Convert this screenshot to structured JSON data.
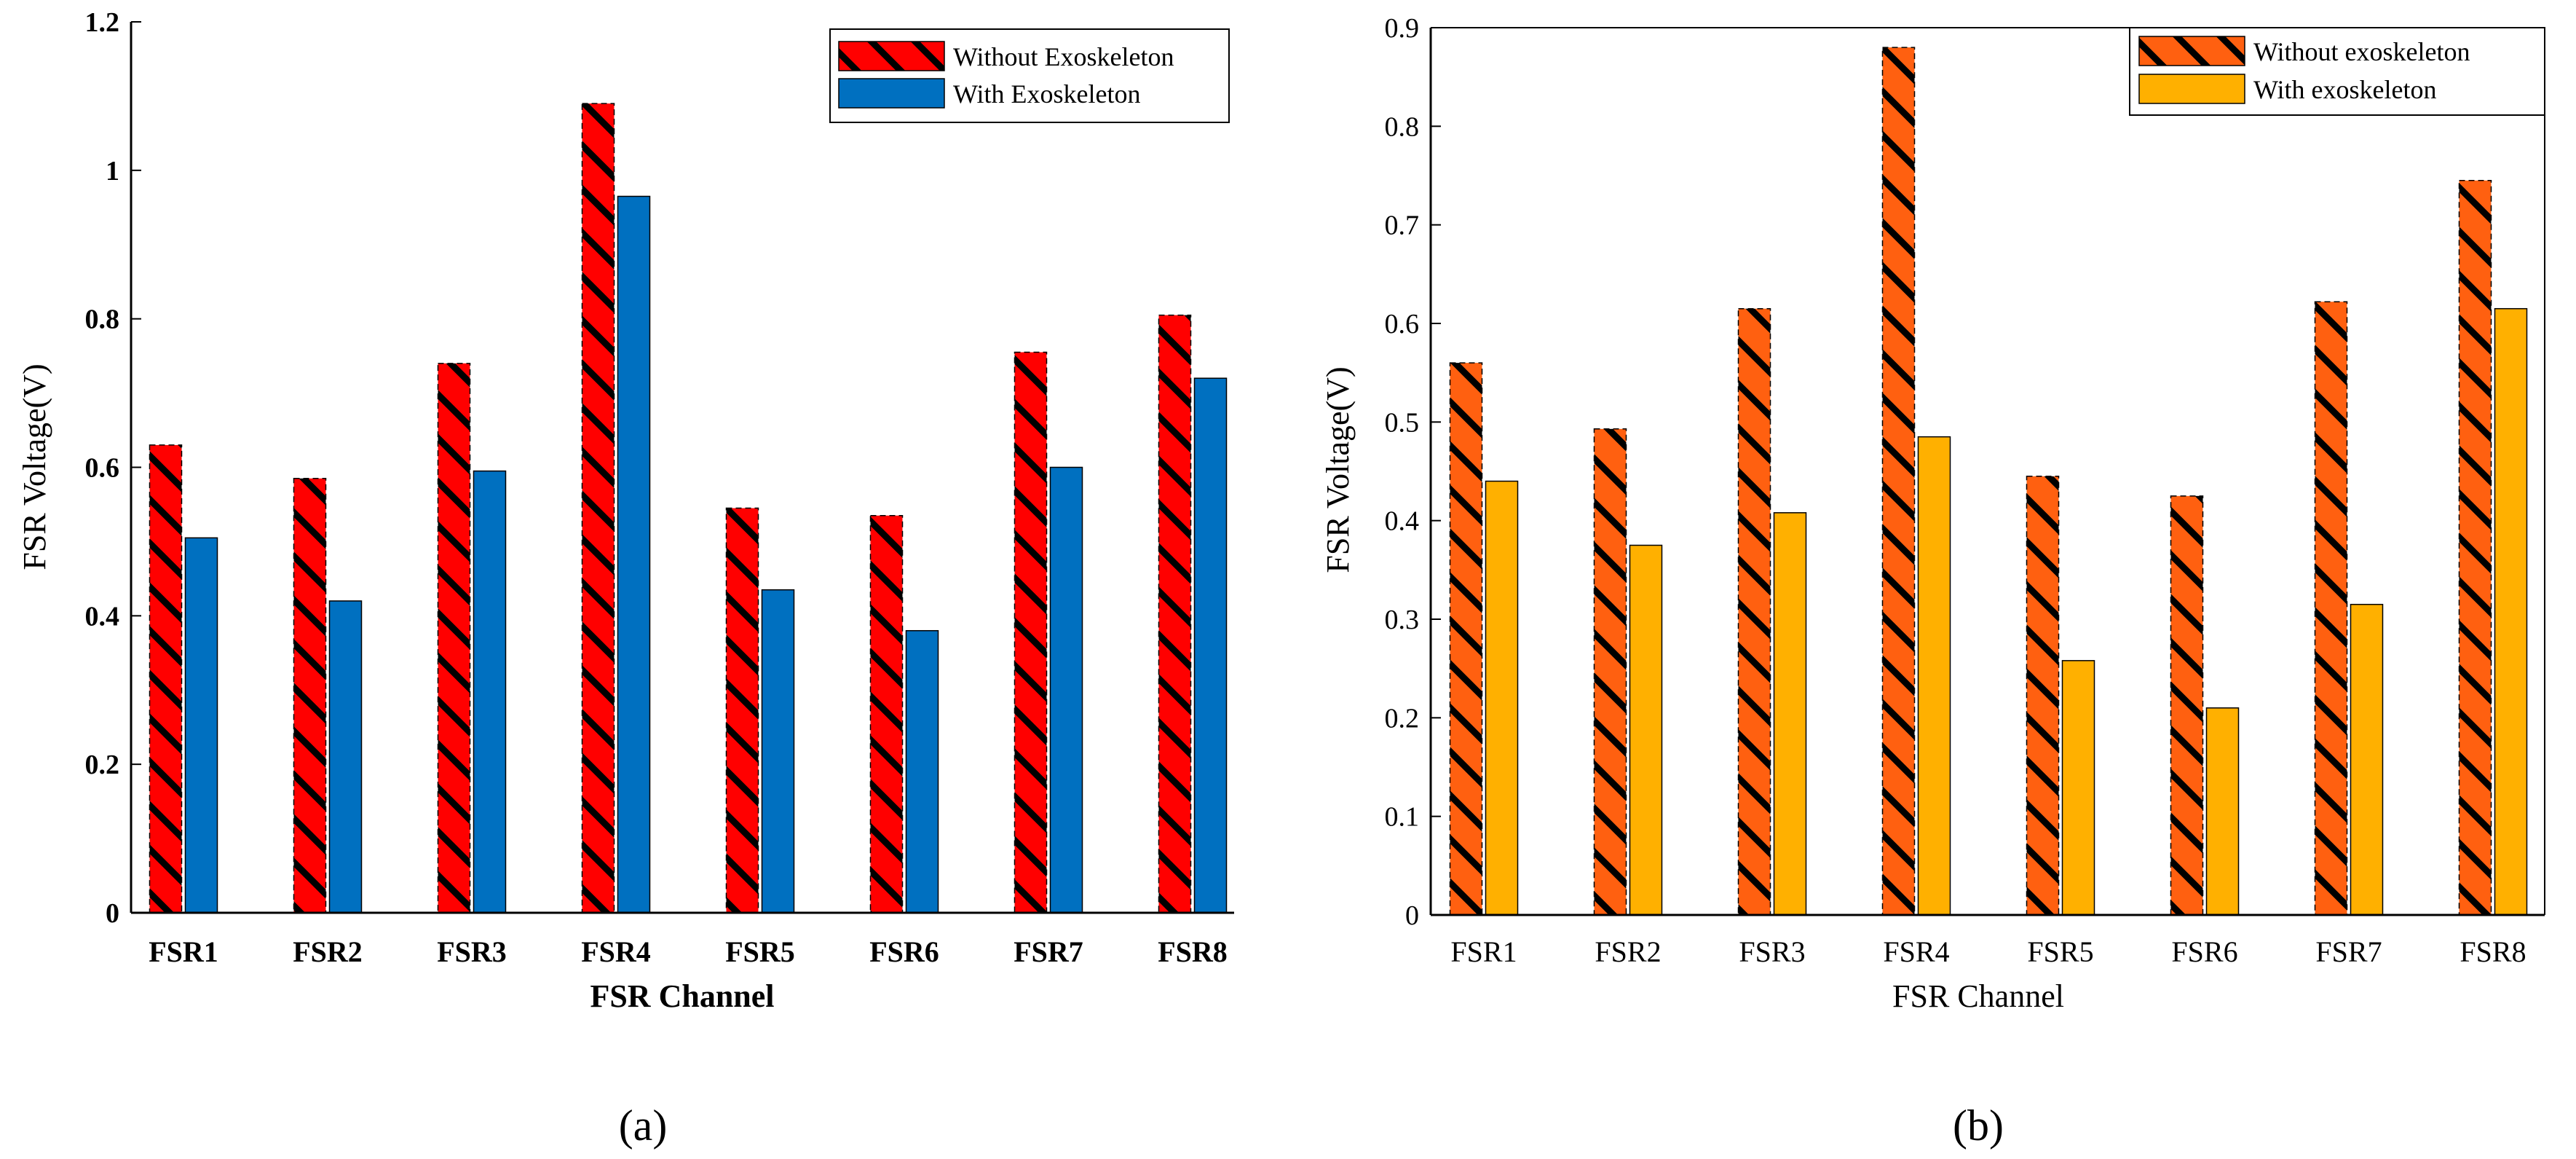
{
  "chart_data": [
    {
      "type": "bar",
      "panel_label": "(a)",
      "title": "",
      "xlabel": "FSR Channel",
      "ylabel": "FSR Voltage(V)",
      "ylim": [
        0,
        1.2
      ],
      "yticks": [
        "0",
        "0.2",
        "0.4",
        "0.6",
        "0.8",
        "1",
        "1.2"
      ],
      "grid": false,
      "legend_position": "top-right",
      "categories": [
        "FSR1",
        "FSR2",
        "FSR3",
        "FSR4",
        "FSR5",
        "FSR6",
        "FSR7",
        "FSR8"
      ],
      "series": [
        {
          "name": "Without Exoskeleton",
          "values": [
            0.63,
            0.585,
            0.74,
            1.09,
            0.545,
            0.535,
            0.755,
            0.805
          ],
          "color": "#ff0000",
          "hatch": "#000000"
        },
        {
          "name": "With Exoskeleton",
          "values": [
            0.505,
            0.42,
            0.595,
            0.965,
            0.435,
            0.38,
            0.6,
            0.72
          ],
          "color": "#0070c0",
          "hatch": ""
        }
      ]
    },
    {
      "type": "bar",
      "panel_label": "(b)",
      "title": "",
      "xlabel": "FSR Channel",
      "ylabel": "FSR Voltage(V)",
      "ylim": [
        0,
        0.9
      ],
      "yticks": [
        "0",
        "0.1",
        "0.2",
        "0.3",
        "0.4",
        "0.5",
        "0.6",
        "0.7",
        "0.8",
        "0.9"
      ],
      "grid": false,
      "legend_position": "top-right",
      "categories": [
        "FSR1",
        "FSR2",
        "FSR3",
        "FSR4",
        "FSR5",
        "FSR6",
        "FSR7",
        "FSR8"
      ],
      "series": [
        {
          "name": "Without exoskeleton",
          "values": [
            0.56,
            0.493,
            0.615,
            0.88,
            0.445,
            0.425,
            0.622,
            0.745
          ],
          "color": "#ff6010",
          "hatch": "#000000"
        },
        {
          "name": "With exoskeleton",
          "values": [
            0.44,
            0.375,
            0.408,
            0.485,
            0.258,
            0.21,
            0.315,
            0.615
          ],
          "color": "#ffb000",
          "hatch": ""
        }
      ]
    }
  ]
}
